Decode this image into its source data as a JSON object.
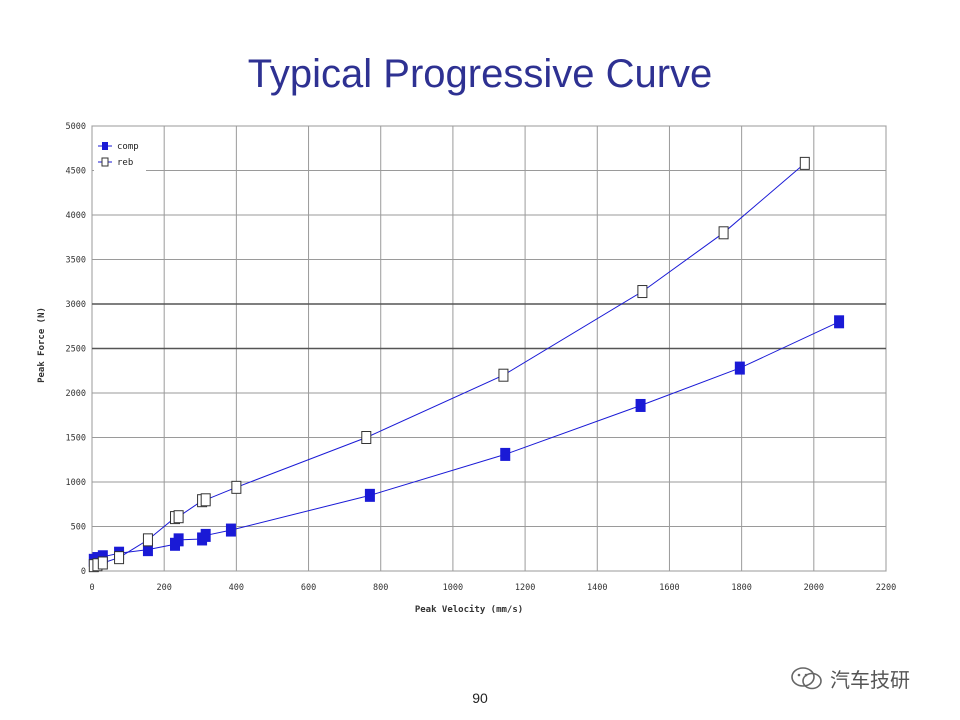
{
  "slide": {
    "title": "Typical Progressive Curve",
    "page_number": "90",
    "watermark": "汽车技研"
  },
  "chart_data": {
    "type": "scatter",
    "title": "Typical Progressive Curve",
    "xlabel": "Peak Velocity (mm/s)",
    "ylabel": "Peak Force (N)",
    "xlim": [
      0,
      2200
    ],
    "ylim": [
      0,
      5000
    ],
    "x_ticks": [
      0,
      200,
      400,
      600,
      800,
      1000,
      1200,
      1400,
      1600,
      1800,
      2000,
      2200
    ],
    "y_ticks": [
      0,
      500,
      1000,
      1500,
      2000,
      2500,
      3000,
      3500,
      4000,
      4500,
      5000
    ],
    "grid": true,
    "legend_position": "top-left",
    "series": [
      {
        "name": "comp",
        "marker": "filled-square",
        "color": "#1a1ad6",
        "points": [
          [
            5,
            120
          ],
          [
            15,
            140
          ],
          [
            30,
            160
          ],
          [
            75,
            200
          ],
          [
            155,
            240
          ],
          [
            230,
            300
          ],
          [
            240,
            350
          ],
          [
            305,
            360
          ],
          [
            315,
            400
          ],
          [
            385,
            460
          ],
          [
            770,
            850
          ],
          [
            1145,
            1310
          ],
          [
            1520,
            1860
          ],
          [
            1795,
            2280
          ],
          [
            2070,
            2800
          ]
        ]
      },
      {
        "name": "reb",
        "marker": "open-square",
        "color": "#1a1ad6",
        "points": [
          [
            5,
            60
          ],
          [
            15,
            70
          ],
          [
            30,
            90
          ],
          [
            75,
            150
          ],
          [
            155,
            350
          ],
          [
            230,
            600
          ],
          [
            240,
            610
          ],
          [
            305,
            790
          ],
          [
            315,
            800
          ],
          [
            400,
            940
          ],
          [
            760,
            1500
          ],
          [
            1140,
            2200
          ],
          [
            1525,
            3140
          ],
          [
            1750,
            3800
          ],
          [
            1975,
            4580
          ]
        ]
      }
    ]
  }
}
